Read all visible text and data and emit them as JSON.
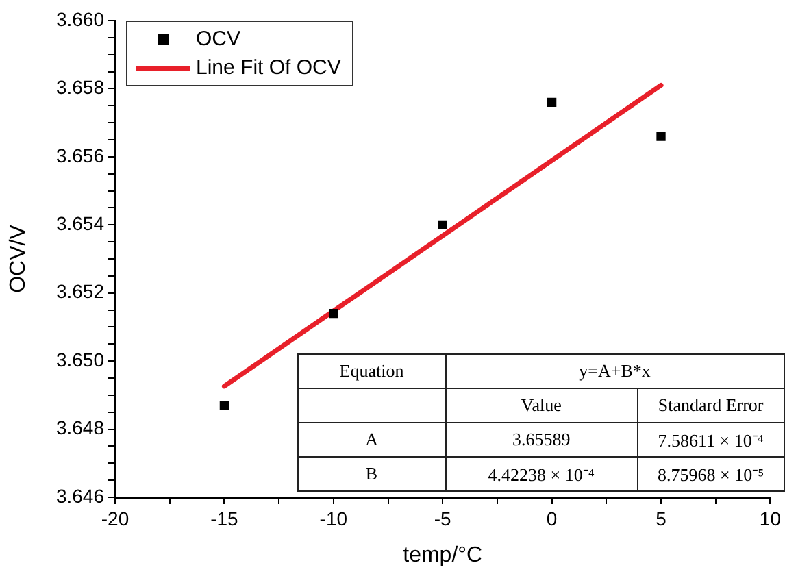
{
  "chart_data": {
    "type": "scatter",
    "xlabel": "temp/°C",
    "ylabel": "OCV/V",
    "xlim": [
      -20,
      10
    ],
    "xticks": [
      -20,
      {
        "value": -17.5,
        "label": null
      },
      -15,
      {
        "value": -12.5,
        "label": null
      },
      -10,
      {
        "value": -7.5,
        "label": null
      },
      -5,
      {
        "value": -2.5,
        "label": null
      },
      0,
      {
        "value": 2.5,
        "label": null
      },
      5,
      {
        "value": 7.5,
        "label": null
      },
      10
    ],
    "ylim": [
      3.646,
      3.66
    ],
    "yticks": [
      "3.646",
      {
        "value": 3.6465,
        "label": null
      },
      {
        "value": 3.647,
        "label": null
      },
      {
        "value": 3.6475,
        "label": null
      },
      {
        "value": 3.648,
        "label": "3.648"
      },
      {
        "value": 3.6485,
        "label": null
      },
      {
        "value": 3.649,
        "label": null
      },
      {
        "value": 3.6495,
        "label": null
      },
      {
        "value": 3.65,
        "label": "3.650"
      },
      {
        "value": 3.6505,
        "label": null
      },
      {
        "value": 3.651,
        "label": null
      },
      {
        "value": 3.6515,
        "label": null
      },
      {
        "value": 3.652,
        "label": "3.652"
      },
      {
        "value": 3.6525,
        "label": null
      },
      {
        "value": 3.653,
        "label": null
      },
      {
        "value": 3.6535,
        "label": null
      },
      {
        "value": 3.654,
        "label": "3.654"
      },
      {
        "value": 3.6545,
        "label": null
      },
      {
        "value": 3.655,
        "label": null
      },
      {
        "value": 3.6555,
        "label": null
      },
      {
        "value": 3.656,
        "label": "3.656"
      },
      {
        "value": 3.6565,
        "label": null
      },
      {
        "value": 3.657,
        "label": null
      },
      {
        "value": 3.6575,
        "label": null
      },
      {
        "value": 3.658,
        "label": "3.658"
      },
      {
        "value": 3.6585,
        "label": null
      },
      {
        "value": 3.659,
        "label": null
      },
      {
        "value": 3.6595,
        "label": null
      },
      {
        "value": 3.66,
        "label": "3.660"
      }
    ],
    "x": [
      -15,
      -10,
      -5,
      0,
      5
    ],
    "series": [
      {
        "name": "OCV",
        "color": "#000000",
        "marker": "square",
        "values": [
          3.6487,
          3.6514,
          3.654,
          3.6576,
          3.6566
        ]
      },
      {
        "name": "Line Fit Of OCV",
        "type": "line",
        "color": "#e8202a",
        "marker": "none",
        "x": [
          -15,
          5
        ],
        "values": [
          3.64926,
          3.6581
        ]
      }
    ],
    "legend": "top left",
    "grid": false,
    "annotations": [
      "Equation",
      "y=A+B*x",
      "Value",
      "Standard Error",
      "A",
      "3.65589",
      "7.58611 × 10⁻⁴",
      "B",
      "4.42238 × 10⁻⁴",
      "8.75968 × 10⁻⁵"
    ]
  }
}
